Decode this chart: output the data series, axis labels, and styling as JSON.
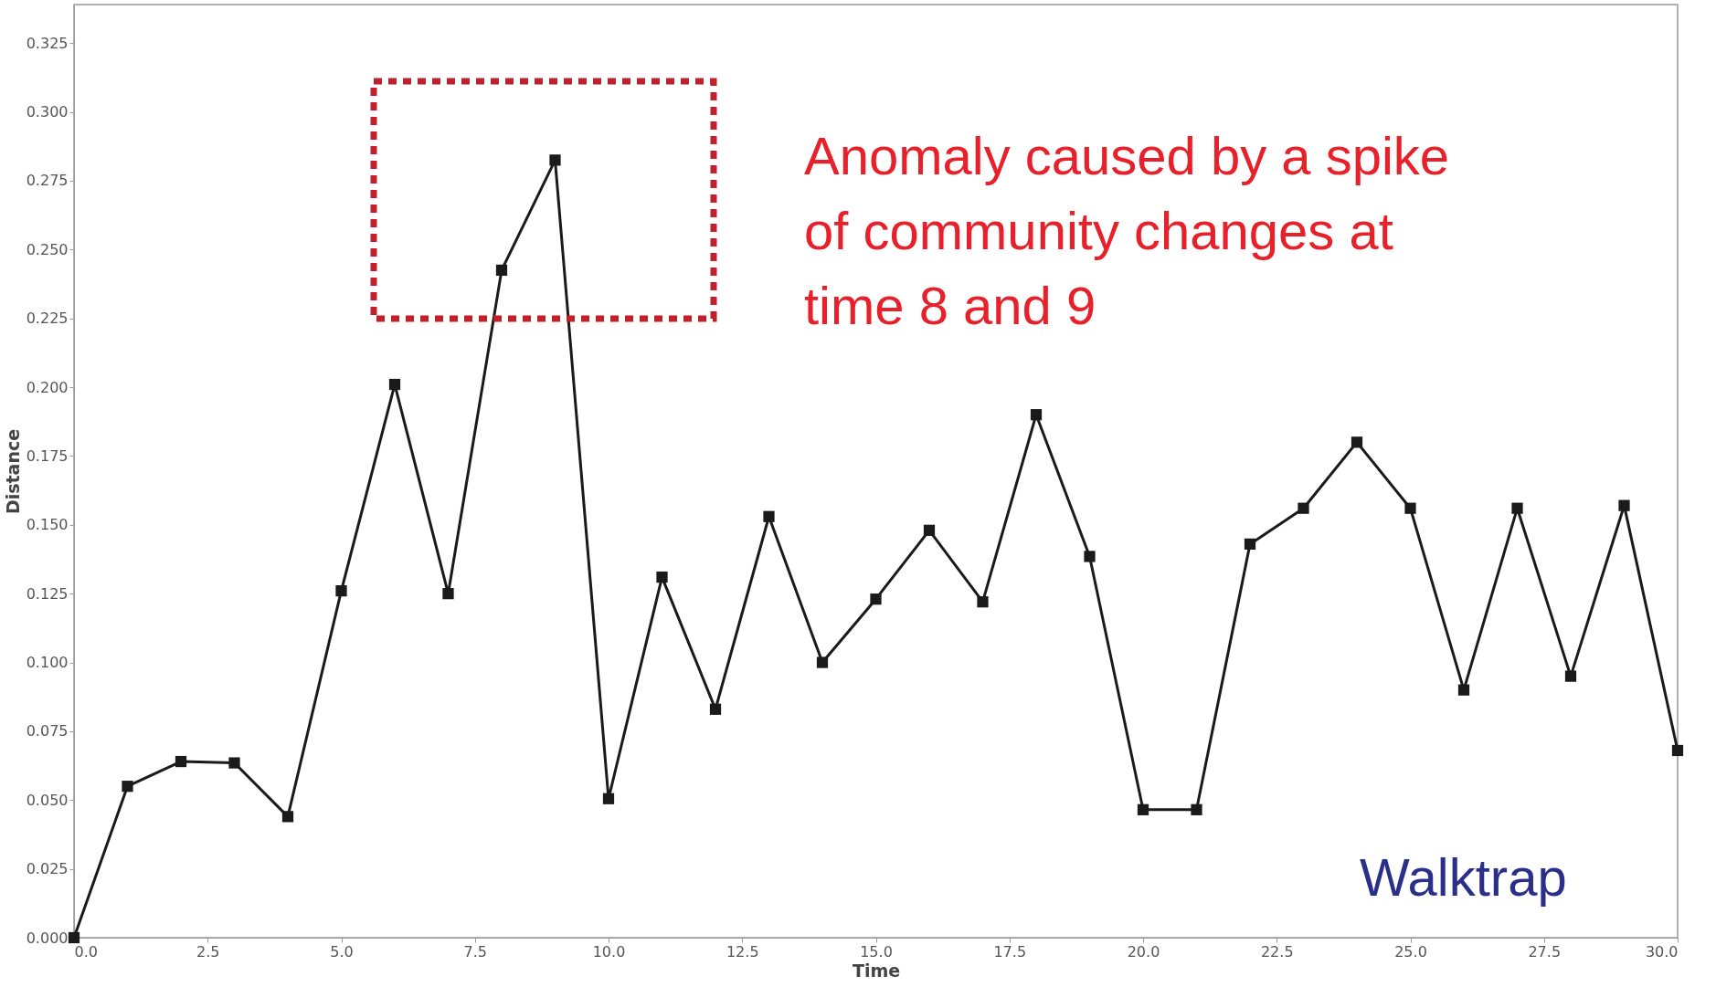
{
  "chart_data": {
    "type": "line",
    "xlabel": "Time",
    "ylabel": "Distance",
    "x": [
      0,
      1,
      2,
      3,
      4,
      5,
      6,
      7,
      8,
      9,
      10,
      11,
      12,
      13,
      14,
      15,
      16,
      17,
      18,
      19,
      20,
      21,
      22,
      23,
      24,
      25,
      26,
      27,
      28,
      29,
      30
    ],
    "series": [
      {
        "color": "#1a1a1a",
        "values": [
          0.0,
          0.055,
          0.064,
          0.0635,
          0.044,
          0.126,
          0.201,
          0.125,
          0.2425,
          0.2825,
          0.0505,
          0.131,
          0.083,
          0.153,
          0.1,
          0.123,
          0.148,
          0.122,
          0.19,
          0.1385,
          0.0465,
          0.0465,
          0.143,
          0.156,
          0.18,
          0.156,
          0.09,
          0.156,
          0.095,
          0.157,
          0.068
        ]
      }
    ],
    "xlim": [
      0,
      30
    ],
    "ylim": [
      0,
      0.339
    ],
    "xticks": [
      {
        "value": 0,
        "label": "0.0"
      },
      {
        "value": 2.5,
        "label": "2.5"
      },
      {
        "value": 5,
        "label": "5.0"
      },
      {
        "value": 7.5,
        "label": "7.5"
      },
      {
        "value": 10,
        "label": "10.0"
      },
      {
        "value": 12.5,
        "label": "12.5"
      },
      {
        "value": 15,
        "label": "15.0"
      },
      {
        "value": 17.5,
        "label": "17.5"
      },
      {
        "value": 20,
        "label": "20.0"
      },
      {
        "value": 22.5,
        "label": "22.5"
      },
      {
        "value": 25,
        "label": "25.0"
      },
      {
        "value": 27.5,
        "label": "27.5"
      },
      {
        "value": 30,
        "label": "30.0"
      }
    ],
    "yticks": [
      {
        "value": 0,
        "label": "0.000"
      },
      {
        "value": 0.025,
        "label": "0.025"
      },
      {
        "value": 0.05,
        "label": "0.050"
      },
      {
        "value": 0.075,
        "label": "0.075"
      },
      {
        "value": 0.1,
        "label": "0.100"
      },
      {
        "value": 0.125,
        "label": "0.125"
      },
      {
        "value": 0.15,
        "label": "0.150"
      },
      {
        "value": 0.175,
        "label": "0.175"
      },
      {
        "value": 0.2,
        "label": "0.200"
      },
      {
        "value": 0.225,
        "label": "0.225"
      },
      {
        "value": 0.25,
        "label": "0.250"
      },
      {
        "value": 0.275,
        "label": "0.275"
      },
      {
        "value": 0.3,
        "label": "0.300"
      },
      {
        "value": 0.325,
        "label": "0.325"
      }
    ],
    "marker": "square",
    "line_style": "solid",
    "grid": false,
    "annotations": [
      "Anomaly caused by a spike of community changes at time 8 and 9",
      "Walktrap"
    ]
  }
}
